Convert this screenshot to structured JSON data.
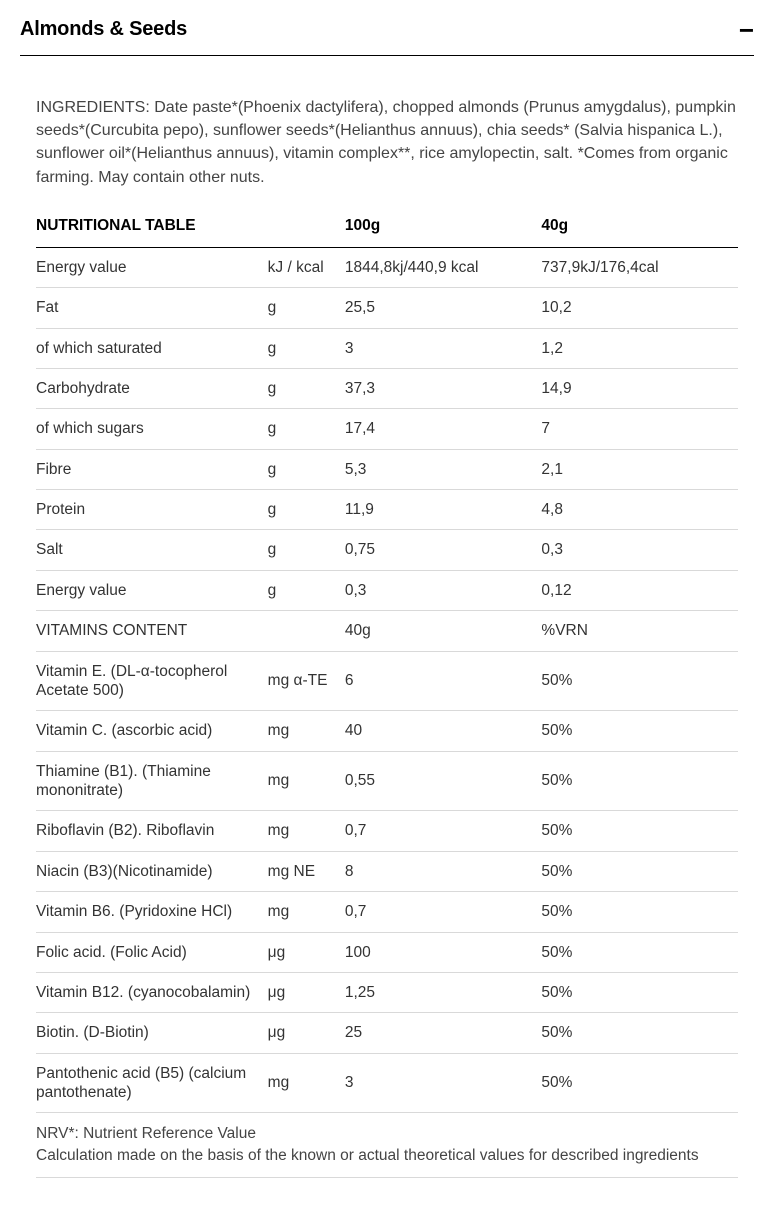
{
  "header": {
    "title": "Almonds & Seeds",
    "collapse_symbol": "−"
  },
  "ingredients_text": "INGREDIENTS: Date paste*(Phoenix dactylifera), chopped almonds (Prunus amygdalus), pumpkin seeds*(Curcubita pepo), sunflower seeds*(Helianthus annuus), chia seeds* (Salvia hispanica L.), sunflower oil*(Helianthus annuus), vitamin complex**, rice amylopectin, salt. *Comes from organic farming. May contain other nuts.",
  "table": {
    "head": {
      "c1": "NUTRITIONAL TABLE",
      "c2": "",
      "c3": "100g",
      "c4": "40g"
    },
    "rows": [
      {
        "c1": "Energy value",
        "c2": "kJ / kcal",
        "c3": "1844,8kj/440,9 kcal",
        "c4": "737,9kJ/176,4cal"
      },
      {
        "c1": "Fat",
        "c2": "g",
        "c3": "25,5",
        "c4": "10,2"
      },
      {
        "c1": "of which saturated",
        "c2": "g",
        "c3": "3",
        "c4": "1,2"
      },
      {
        "c1": "Carbohydrate",
        "c2": "g",
        "c3": "37,3",
        "c4": "14,9"
      },
      {
        "c1": "of which sugars",
        "c2": "g",
        "c3": "17,4",
        "c4": "7"
      },
      {
        "c1": "Fibre",
        "c2": "g",
        "c3": "5,3",
        "c4": "2,1"
      },
      {
        "c1": "Protein",
        "c2": "g",
        "c3": "11,9",
        "c4": "4,8"
      },
      {
        "c1": "Salt",
        "c2": "g",
        "c3": "0,75",
        "c4": "0,3"
      },
      {
        "c1": "Energy value",
        "c2": "g",
        "c3": "0,3",
        "c4": "0,12"
      },
      {
        "c1": "VITAMINS CONTENT",
        "c2": "",
        "c3": "40g",
        "c4": "%VRN"
      },
      {
        "c1": "Vitamin E. (DL-α-tocopherol Acetate 500)",
        "c2": "mg α-TE",
        "c3": "6",
        "c4": "50%"
      },
      {
        "c1": "Vitamin C. (ascorbic acid)",
        "c2": "mg",
        "c3": "40",
        "c4": "50%"
      },
      {
        "c1": "Thiamine (B1). (Thiamine mononitrate)",
        "c2": "mg",
        "c3": "0,55",
        "c4": "50%"
      },
      {
        "c1": "Riboflavin (B2). Riboflavin",
        "c2": "mg",
        "c3": "0,7",
        "c4": "50%"
      },
      {
        "c1": "Niacin (B3)(Nicotinamide)",
        "c2": "mg NE",
        "c3": "8",
        "c4": "50%"
      },
      {
        "c1": "Vitamin B6. (Pyridoxine HCl)",
        "c2": "mg",
        "c3": "0,7",
        "c4": "50%"
      },
      {
        "c1": "Folic acid. (Folic Acid)",
        "c2": "μg",
        "c3": "100",
        "c4": "50%"
      },
      {
        "c1": "Vitamin B12. (cyanocobalamin)",
        "c2": "μg",
        "c3": "1,25",
        "c4": "50%"
      },
      {
        "c1": "Biotin. (D-Biotin)",
        "c2": "μg",
        "c3": "25",
        "c4": "50%"
      },
      {
        "c1": "Pantothenic acid (B5) (calcium pantothenate)",
        "c2": "mg",
        "c3": "3",
        "c4": "50%"
      }
    ],
    "footnote": "NRV*: Nutrient Reference Value\nCalculation made on the basis of the known or actual theoretical values for described ingredients"
  }
}
